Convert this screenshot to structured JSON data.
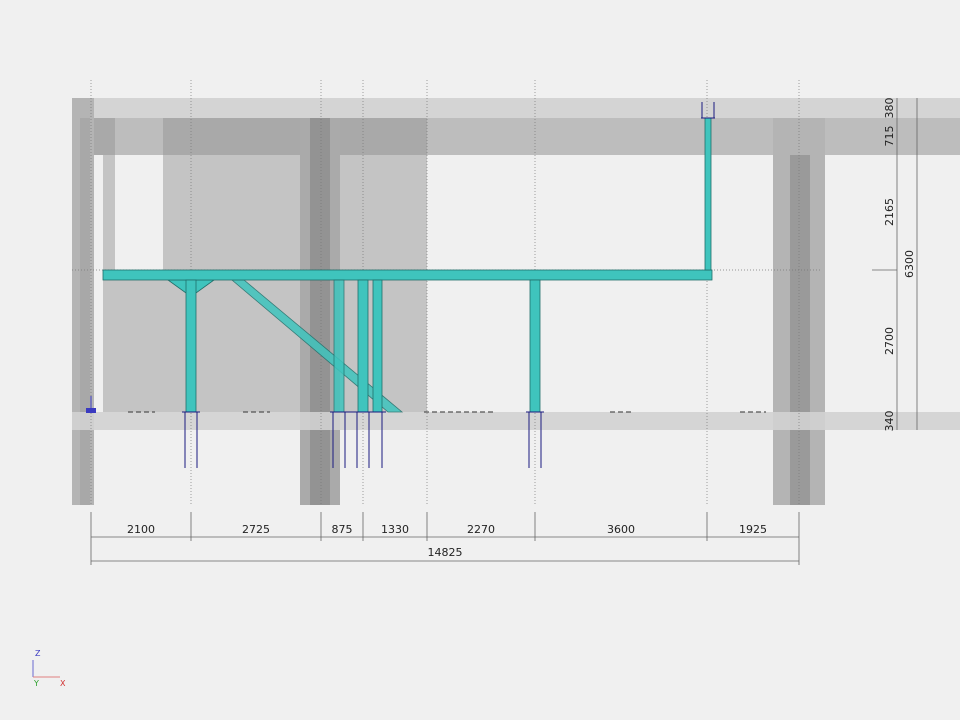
{
  "viewport": {
    "background": "#f0f0f0",
    "steel_color": "#3fc4bd",
    "anchor_color": "#1a1a80"
  },
  "dimensions": {
    "horizontal": [
      "2100",
      "2725",
      "875",
      "1330",
      "2270",
      "3600",
      "1925"
    ],
    "horizontal_total": "14825",
    "vertical": [
      "380",
      "715",
      "2165",
      "2700",
      "340"
    ],
    "vertical_total": "6300"
  },
  "axis_triad": {
    "z": "Z",
    "y": "Y",
    "x": "X"
  }
}
